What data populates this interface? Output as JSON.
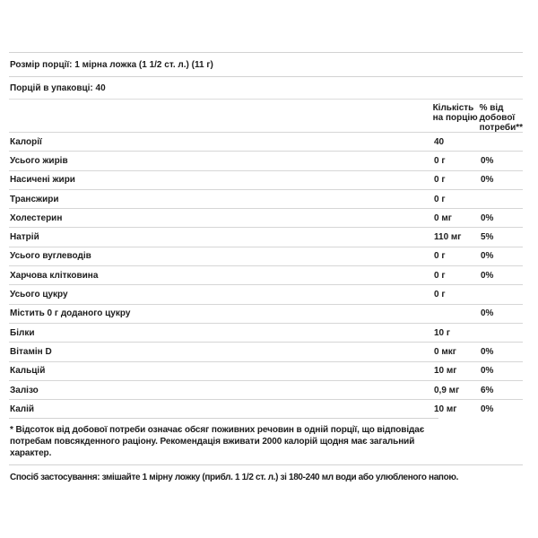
{
  "panel": {
    "serving_size": "Розмір порції: 1 мірна ложка (1 1/2 ст. л.) (11 г)",
    "servings_per_container": "Порцій в упаковці: 40",
    "footnote": "* Відсоток від добової потреби означає обсяг поживних речовин в одній порції, що відповідає потребам повсякденного раціону. Рекомендація вживати 2000 калорій щодня має загальний характер.",
    "directions": "Спосіб застосування: змішайте 1 мірну ложку (прибл. 1 1/2 ст. л.) зі 180-240 мл води або улюбленого напою."
  },
  "table": {
    "amount_header": "Кількість на порцію",
    "dv_header": "% від добової потреби**",
    "rows": [
      {
        "name": "Калорії",
        "amount": "40",
        "dv": ""
      },
      {
        "name": "Усього жирів",
        "amount": "0 г",
        "dv": "0%"
      },
      {
        "name": "Насичені жири",
        "amount": "0 г",
        "dv": "0%"
      },
      {
        "name": "Трансжири",
        "amount": "0 г",
        "dv": ""
      },
      {
        "name": "Холестерин",
        "amount": "0 мг",
        "dv": "0%"
      },
      {
        "name": "Натрій",
        "amount": "110 мг",
        "dv": "5%"
      },
      {
        "name": "Усього вуглеводів",
        "amount": "0 г",
        "dv": "0%"
      },
      {
        "name": "Харчова клітковина",
        "amount": "0 г",
        "dv": "0%"
      },
      {
        "name": "Усього цукру",
        "amount": "0 г",
        "dv": ""
      },
      {
        "name": "Містить 0 г доданого цукру",
        "amount": "",
        "dv": "0%"
      },
      {
        "name": "Білки",
        "amount": "10 г",
        "dv": ""
      },
      {
        "name": "Вітамін D",
        "amount": "0 мкг",
        "dv": "0%"
      },
      {
        "name": "Кальцій",
        "amount": "10 мг",
        "dv": "0%"
      },
      {
        "name": "Залізо",
        "amount": "0,9 мг",
        "dv": "6%"
      },
      {
        "name": "Калій",
        "amount": "10 мг",
        "dv": "0%"
      }
    ]
  },
  "colors": {
    "text": "#1c1c1c",
    "divider": "#d6d6d6",
    "background": "#ffffff"
  }
}
